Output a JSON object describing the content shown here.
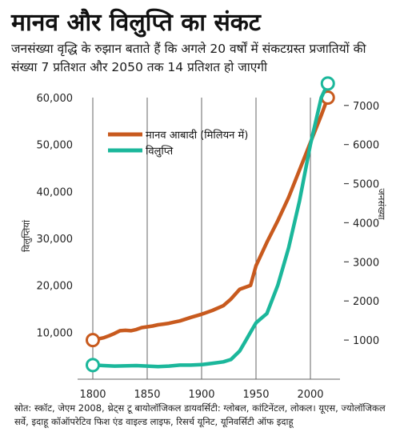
{
  "title": "मानव और विलुप्ति का संकट",
  "subtitle": "जनसंख्या वृद्धि के रुझान बताते हैं कि अगले 20 वर्षों में संकटग्रस्त प्रजातियों की संख्या 7 प्रतिशत और 2050 तक 14 प्रतिशत हो जाएगी",
  "source": "स्रोत: स्कॉट, जेएम 2008, थ्रेट्स टू बायोलॉजिकल डायवर्सिटी: ग्लोबल, कांटिनेंटल, लोकल। यूएस, ज्योलॉजिकल सर्वे, इदाहू कॉऑपरेटिव फिश एंड वाइल्ड लाइफ, रिसर्च यूनिट, यूनिवर्सिटी ऑफ इदाहू",
  "colors": {
    "population": "#c85a1e",
    "extinction": "#1bb79b",
    "grid": "#666666"
  },
  "chart_data": {
    "type": "line",
    "xlabel": "",
    "ylabel_left": "विलुप्तियां",
    "ylabel_right": "जनसंख्या",
    "xlim": [
      1800,
      2020
    ],
    "xticks": [
      1800,
      1850,
      1900,
      1950,
      2000
    ],
    "ylim_left": [
      0,
      60000
    ],
    "yticks_left": [
      "0",
      "10,000",
      "20,000",
      "30,000",
      "40,000",
      "50,000",
      "60,000"
    ],
    "ylim_right": [
      0,
      7200
    ],
    "yticks_right": [
      1000,
      2000,
      3000,
      4000,
      5000,
      6000,
      7000
    ],
    "grid": "vertical lines at x ticks",
    "legend_position": "top-left",
    "series": [
      {
        "name": "मानव आबादी (मिलियन में)",
        "axis": "right",
        "color": "#c85a1e",
        "points": [
          [
            1800,
            1000
          ],
          [
            1805,
            1030
          ],
          [
            1810,
            1060
          ],
          [
            1815,
            1110
          ],
          [
            1820,
            1170
          ],
          [
            1825,
            1240
          ],
          [
            1830,
            1250
          ],
          [
            1835,
            1240
          ],
          [
            1840,
            1270
          ],
          [
            1845,
            1320
          ],
          [
            1850,
            1340
          ],
          [
            1855,
            1360
          ],
          [
            1860,
            1390
          ],
          [
            1865,
            1410
          ],
          [
            1870,
            1430
          ],
          [
            1875,
            1460
          ],
          [
            1880,
            1490
          ],
          [
            1890,
            1580
          ],
          [
            1900,
            1660
          ],
          [
            1910,
            1760
          ],
          [
            1920,
            1880
          ],
          [
            1927,
            2050
          ],
          [
            1935,
            2300
          ],
          [
            1945,
            2400
          ],
          [
            1950,
            2900
          ],
          [
            1960,
            3500
          ],
          [
            1970,
            4050
          ],
          [
            1980,
            4650
          ],
          [
            1990,
            5350
          ],
          [
            2000,
            6050
          ],
          [
            2010,
            6750
          ],
          [
            2016,
            7200
          ]
        ]
      },
      {
        "name": "विलुप्ति",
        "axis": "left",
        "color": "#1bb79b",
        "points": [
          [
            1800,
            3000
          ],
          [
            1820,
            2800
          ],
          [
            1840,
            2900
          ],
          [
            1850,
            2800
          ],
          [
            1860,
            2700
          ],
          [
            1870,
            2800
          ],
          [
            1880,
            3000
          ],
          [
            1890,
            3000
          ],
          [
            1900,
            3100
          ],
          [
            1910,
            3400
          ],
          [
            1920,
            3700
          ],
          [
            1927,
            4200
          ],
          [
            1935,
            6000
          ],
          [
            1940,
            8000
          ],
          [
            1945,
            10000
          ],
          [
            1950,
            12000
          ],
          [
            1955,
            13000
          ],
          [
            1960,
            14000
          ],
          [
            1970,
            20000
          ],
          [
            1980,
            28000
          ],
          [
            1990,
            38000
          ],
          [
            2000,
            50000
          ],
          [
            2005,
            55000
          ],
          [
            2010,
            60000
          ],
          [
            2016,
            63000
          ]
        ]
      }
    ]
  }
}
